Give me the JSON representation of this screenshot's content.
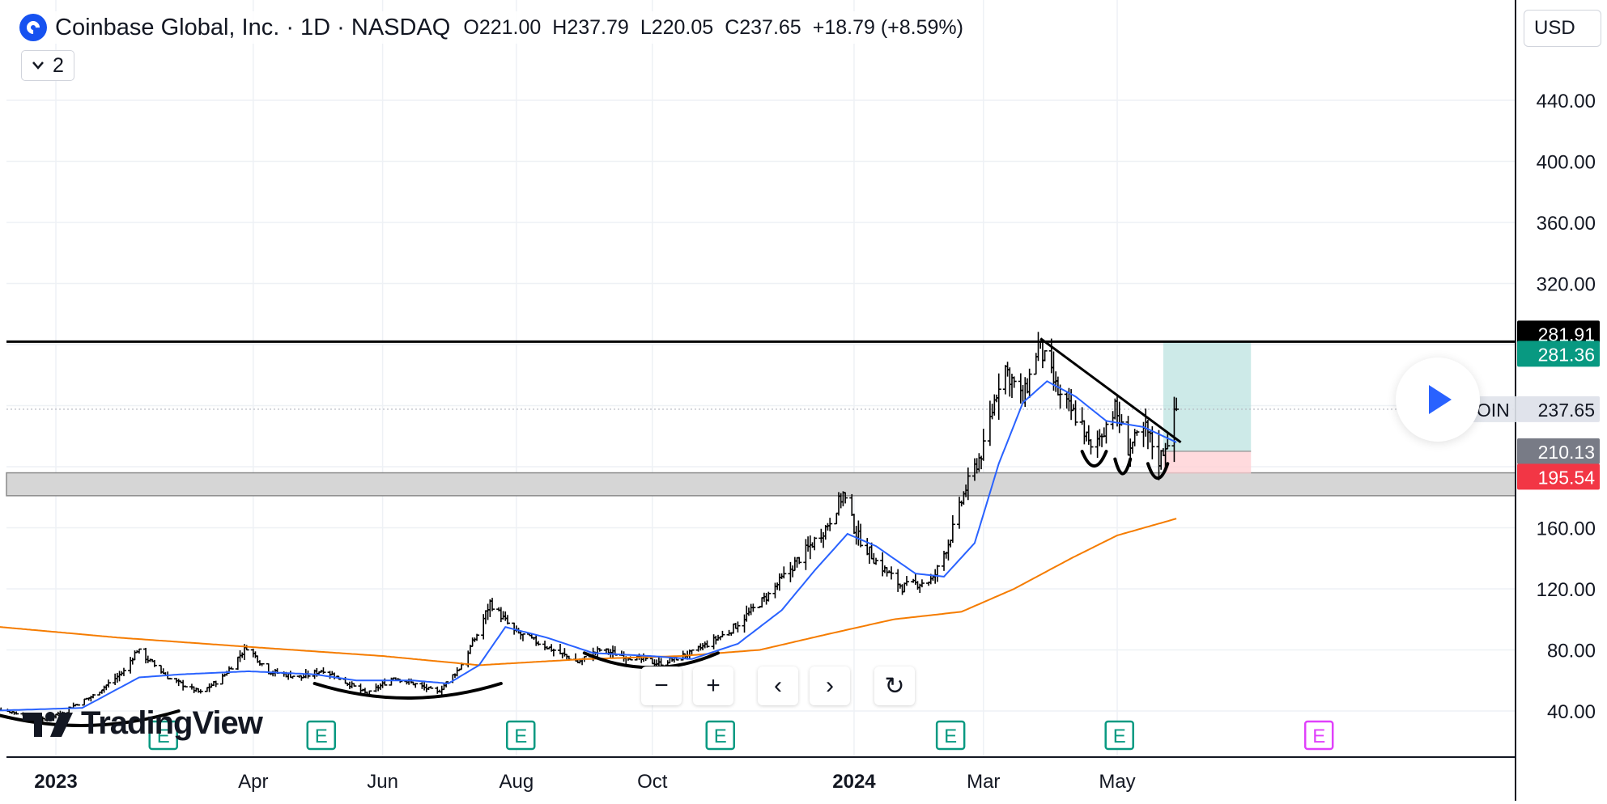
{
  "header": {
    "title": "Coinbase Global, Inc. · 1D · NASDAQ",
    "open_label": "O",
    "open": "221.00",
    "high_label": "H",
    "high": "237.79",
    "low_label": "L",
    "low": "220.05",
    "close_label": "C",
    "close": "237.65",
    "change": "+18.79 (+8.59%)"
  },
  "indicator_button": {
    "count": "2"
  },
  "currency": "USD",
  "branding": "TradingView",
  "controls": {
    "zoom_out": "−",
    "zoom_in": "+",
    "scroll_left": "‹",
    "scroll_right": "›",
    "reset": "↻"
  },
  "colors": {
    "ema_fast": "#2962ff",
    "ma_slow": "#f57c00",
    "price_line": "#000000",
    "target_zone": "#b2dfdb",
    "stop_zone": "#ffcdd2",
    "earnings_marker": "#089981",
    "future_earnings_marker": "#e040fb"
  },
  "chart_data": {
    "type": "ohlc",
    "symbol": "COIN",
    "ylim": [
      20,
      460
    ],
    "y_ticks": [
      "40.00",
      "80.00",
      "120.00",
      "160.00",
      "320.00",
      "360.00",
      "400.00",
      "440.00"
    ],
    "x_ticks": [
      {
        "label": "2023",
        "bold": true,
        "date": "2023-01-03"
      },
      {
        "label": "Apr",
        "bold": false,
        "date": "2023-04-03"
      },
      {
        "label": "Jun",
        "bold": false,
        "date": "2023-06-01"
      },
      {
        "label": "Aug",
        "bold": false,
        "date": "2023-08-01"
      },
      {
        "label": "Oct",
        "bold": false,
        "date": "2023-10-02"
      },
      {
        "label": "2024",
        "bold": true,
        "date": "2024-01-02"
      },
      {
        "label": "Mar",
        "bold": false,
        "date": "2024-03-01"
      },
      {
        "label": "May",
        "bold": false,
        "date": "2024-05-01"
      }
    ],
    "price_labels": [
      {
        "value": "281.91",
        "bg": "#000000",
        "fg": "#ffffff"
      },
      {
        "value": "281.36",
        "bg": "#089981",
        "fg": "#ffffff"
      },
      {
        "value": "237.65",
        "bg": "#e0e3eb",
        "fg": "#131722",
        "symbol": "COIN"
      },
      {
        "value": "210.13",
        "bg": "#787b86",
        "fg": "#ffffff"
      },
      {
        "value": "195.54",
        "bg": "#f23645",
        "fg": "#ffffff"
      }
    ],
    "resistance_level": 281.91,
    "support_zone": [
      181,
      196
    ],
    "trade": {
      "target": 281.36,
      "entry": 210.13,
      "stop": 195.54,
      "start": "2024-05-22",
      "end": "2024-07-01"
    },
    "earnings_dates": [
      "2023-02-21",
      "2023-05-04",
      "2023-08-03",
      "2023-11-02",
      "2024-02-15",
      "2024-05-02"
    ],
    "future_earnings_date": "2024-08-01",
    "price_keypoints": [
      [
        "2022-12-01",
        44
      ],
      [
        "2022-12-29",
        34
      ],
      [
        "2023-01-20",
        50
      ],
      [
        "2023-02-03",
        66
      ],
      [
        "2023-02-09",
        80
      ],
      [
        "2023-02-24",
        61
      ],
      [
        "2023-03-10",
        52
      ],
      [
        "2023-03-20",
        62
      ],
      [
        "2023-03-31",
        82
      ],
      [
        "2023-04-10",
        66
      ],
      [
        "2023-04-25",
        62
      ],
      [
        "2023-05-05",
        67
      ],
      [
        "2023-05-25",
        51
      ],
      [
        "2023-06-06",
        62
      ],
      [
        "2023-06-15",
        58
      ],
      [
        "2023-06-26",
        52
      ],
      [
        "2023-07-06",
        68
      ],
      [
        "2023-07-14",
        90
      ],
      [
        "2023-07-20",
        111
      ],
      [
        "2023-07-31",
        92
      ],
      [
        "2023-08-15",
        82
      ],
      [
        "2023-08-29",
        72
      ],
      [
        "2023-09-08",
        80
      ],
      [
        "2023-09-20",
        76
      ],
      [
        "2023-10-05",
        71
      ],
      [
        "2023-10-20",
        78
      ],
      [
        "2023-11-06",
        92
      ],
      [
        "2023-11-24",
        116
      ],
      [
        "2023-12-08",
        140
      ],
      [
        "2023-12-20",
        160
      ],
      [
        "2023-12-28",
        182
      ],
      [
        "2024-01-03",
        156
      ],
      [
        "2024-01-12",
        138
      ],
      [
        "2024-01-24",
        121
      ],
      [
        "2024-02-07",
        126
      ],
      [
        "2024-02-14",
        150
      ],
      [
        "2024-02-22",
        186
      ],
      [
        "2024-03-01",
        212
      ],
      [
        "2024-03-10",
        268
      ],
      [
        "2024-03-19",
        243
      ],
      [
        "2024-03-26",
        280
      ],
      [
        "2024-04-05",
        245
      ],
      [
        "2024-04-15",
        228
      ],
      [
        "2024-04-19",
        210
      ],
      [
        "2024-04-30",
        238
      ],
      [
        "2024-05-06",
        212
      ],
      [
        "2024-05-14",
        225
      ],
      [
        "2024-05-20",
        204
      ],
      [
        "2024-05-24",
        218
      ],
      [
        "2024-05-28",
        237.65
      ]
    ],
    "ema_fast_keypoints": [
      [
        "2022-12-01",
        40
      ],
      [
        "2023-01-15",
        42
      ],
      [
        "2023-02-10",
        62
      ],
      [
        "2023-03-01",
        64
      ],
      [
        "2023-04-01",
        66
      ],
      [
        "2023-05-01",
        64
      ],
      [
        "2023-05-20",
        60
      ],
      [
        "2023-06-15",
        60
      ],
      [
        "2023-07-01",
        58
      ],
      [
        "2023-07-15",
        70
      ],
      [
        "2023-07-27",
        95
      ],
      [
        "2023-08-15",
        88
      ],
      [
        "2023-09-05",
        78
      ],
      [
        "2023-10-01",
        76
      ],
      [
        "2023-10-20",
        74
      ],
      [
        "2023-11-10",
        84
      ],
      [
        "2023-11-30",
        106
      ],
      [
        "2023-12-15",
        132
      ],
      [
        "2023-12-30",
        156
      ],
      [
        "2024-01-12",
        148
      ],
      [
        "2024-01-30",
        130
      ],
      [
        "2024-02-12",
        128
      ],
      [
        "2024-02-26",
        150
      ],
      [
        "2024-03-08",
        202
      ],
      [
        "2024-03-19",
        242
      ],
      [
        "2024-03-30",
        256
      ],
      [
        "2024-04-12",
        246
      ],
      [
        "2024-04-26",
        230
      ],
      [
        "2024-05-13",
        226
      ],
      [
        "2024-05-28",
        216
      ]
    ],
    "ma_slow_keypoints": [
      [
        "2022-12-01",
        96
      ],
      [
        "2023-02-01",
        88
      ],
      [
        "2023-04-01",
        82
      ],
      [
        "2023-06-01",
        76
      ],
      [
        "2023-07-15",
        70
      ],
      [
        "2023-09-01",
        74
      ],
      [
        "2023-10-15",
        76
      ],
      [
        "2023-11-20",
        80
      ],
      [
        "2023-12-20",
        90
      ],
      [
        "2024-01-20",
        100
      ],
      [
        "2024-02-20",
        105
      ],
      [
        "2024-03-15",
        120
      ],
      [
        "2024-04-10",
        140
      ],
      [
        "2024-05-01",
        155
      ],
      [
        "2024-05-28",
        166
      ]
    ],
    "annotations": [
      {
        "type": "trendline",
        "points": [
          [
            "2024-03-27",
            284
          ],
          [
            "2024-05-30",
            216
          ]
        ]
      },
      {
        "type": "arc",
        "from": "2022-12-01",
        "to": "2023-02-28",
        "level": 40
      },
      {
        "type": "arc",
        "from": "2023-05-01",
        "to": "2023-07-25",
        "level": 58
      },
      {
        "type": "arc",
        "from": "2023-09-01",
        "to": "2023-11-01",
        "level": 78
      },
      {
        "type": "arc",
        "from": "2024-04-15",
        "to": "2024-04-26",
        "level": 210
      },
      {
        "type": "arc",
        "from": "2024-04-30",
        "to": "2024-05-07",
        "level": 205
      },
      {
        "type": "arc",
        "from": "2024-05-15",
        "to": "2024-05-24",
        "level": 202
      }
    ]
  }
}
